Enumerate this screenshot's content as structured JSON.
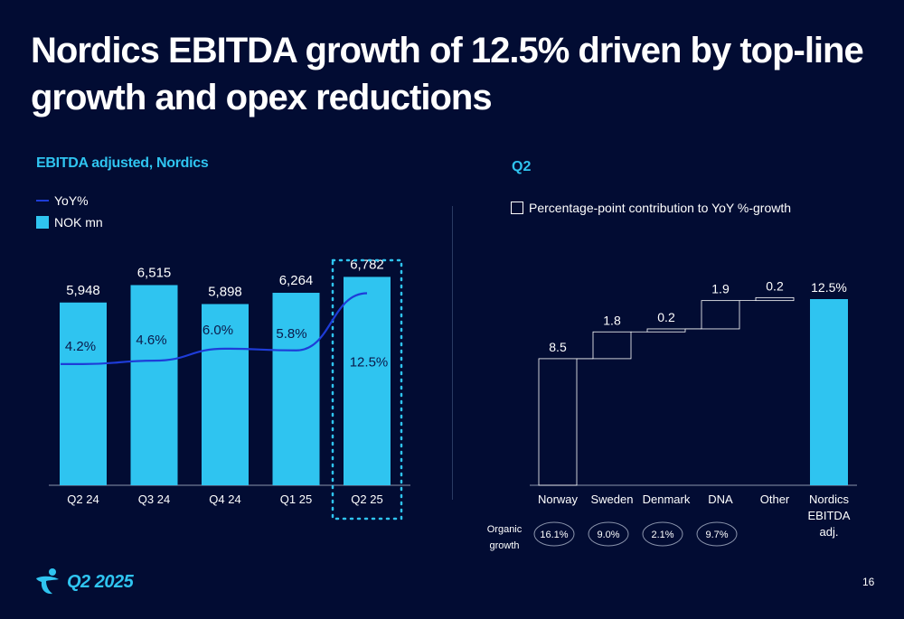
{
  "slide": {
    "title": "Nordics EBITDA growth of 12.5% driven by top-line growth and opex reductions",
    "page_number": "16",
    "logo_text": "Q2 2025"
  },
  "colors": {
    "background": "#020c33",
    "accent": "#2fc4f0",
    "yoy_line": "#1e3cd8",
    "text": "#ffffff"
  },
  "chart_data": [
    {
      "type": "bar",
      "title": "EBITDA adjusted, Nordics",
      "categories": [
        "Q2 24",
        "Q3 24",
        "Q4 24",
        "Q1 25",
        "Q2 25"
      ],
      "series": [
        {
          "name": "NOK mn",
          "type": "bar",
          "values": [
            5948,
            6515,
            5898,
            6264,
            6782
          ],
          "labels": [
            "5,948",
            "6,515",
            "5,898",
            "6,264",
            "6,782"
          ]
        },
        {
          "name": "YoY%",
          "type": "line",
          "values": [
            4.2,
            4.6,
            6.0,
            5.8,
            12.5
          ],
          "labels": [
            "4.2%",
            "4.6%",
            "6.0%",
            "5.8%",
            "12.5%"
          ]
        }
      ],
      "highlight_category": "Q2 25",
      "ylim": [
        0,
        7500
      ],
      "yoy_ylim": [
        -10,
        17
      ]
    },
    {
      "type": "waterfall",
      "title": "Q2",
      "legend": [
        "Percentage-point contribution to YoY %-growth"
      ],
      "categories": [
        "Norway",
        "Sweden",
        "Denmark",
        "DNA",
        "Other",
        "Nordics EBITDA adj."
      ],
      "values": [
        8.5,
        1.8,
        0.2,
        1.9,
        0.2,
        12.5
      ],
      "labels": [
        "8.5",
        "1.8",
        "0.2",
        "1.9",
        "0.2",
        "12.5%"
      ],
      "total_index": 5,
      "ylim": [
        0,
        12.5
      ],
      "organic_growth": {
        "label": "Organic growth",
        "values": [
          "16.1%",
          "9.0%",
          "2.1%",
          "9.7%"
        ]
      }
    }
  ]
}
